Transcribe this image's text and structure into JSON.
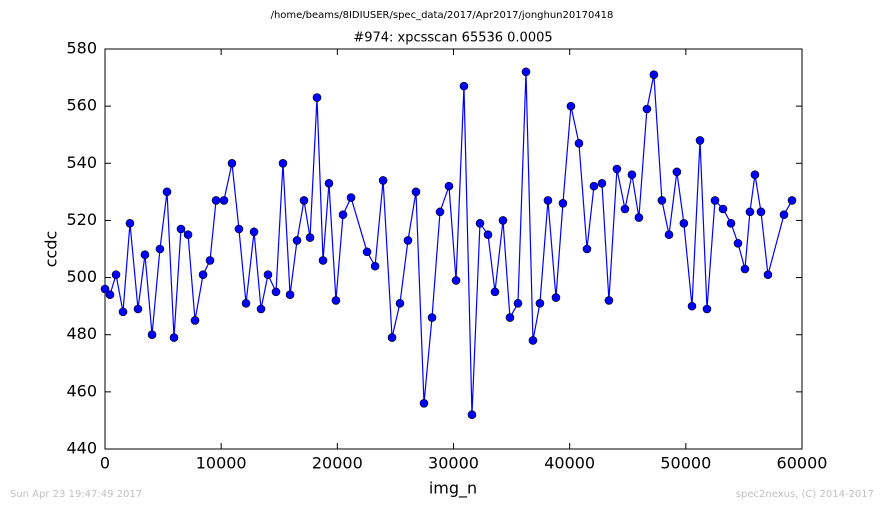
{
  "header": "/home/beams/8IDIUSER/spec_data/2017/Apr2017/jonghun20170418",
  "chart_data": {
    "type": "line",
    "title": "#974: xpcsscan 65536 0.0005",
    "x_label": "img_n",
    "y_label": "ccdc",
    "color": "#0000ff",
    "x": [
      0,
      430,
      950,
      1550,
      2150,
      2840,
      3440,
      4050,
      4730,
      5340,
      5940,
      6540,
      7150,
      7750,
      8440,
      9040,
      9560,
      10240,
      10930,
      11530,
      12140,
      12830,
      13430,
      14030,
      14720,
      15320,
      15930,
      16530,
      17130,
      17650,
      18250,
      18770,
      19280,
      19880,
      20490,
      21180,
      22560,
      23250,
      23940,
      24710,
      25390,
      26080,
      26770,
      27460,
      28150,
      28840,
      29610,
      30220,
      30900,
      31590,
      32280,
      32970,
      33570,
      34260,
      34860,
      35550,
      36240,
      36840,
      37440,
      38130,
      38820,
      39420,
      40110,
      40800,
      41490,
      42090,
      42780,
      43380,
      44070,
      44760,
      45360,
      45960,
      46650,
      47250,
      47940,
      48550,
      49230,
      49830,
      50530,
      51220,
      51820,
      52510,
      53200,
      53890,
      54490,
      55090,
      55520,
      55950,
      56470,
      57070,
      58450,
      59140
    ],
    "values": [
      496,
      494,
      501,
      488,
      519,
      489,
      508,
      480,
      510,
      530,
      479,
      517,
      515,
      485,
      501,
      506,
      527,
      527,
      540,
      517,
      491,
      516,
      489,
      501,
      495,
      540,
      494,
      513,
      527,
      514,
      563,
      506,
      533,
      492,
      522,
      528,
      509,
      504,
      534,
      479,
      491,
      513,
      530,
      456,
      486,
      523,
      532,
      499,
      567,
      452,
      519,
      515,
      495,
      520,
      486,
      491,
      572,
      478,
      491,
      527,
      493,
      526,
      560,
      547,
      510,
      532,
      533,
      492,
      538,
      524,
      536,
      521,
      559,
      571,
      527,
      515,
      537,
      519,
      490,
      548,
      489,
      527,
      524,
      519,
      512,
      503,
      523,
      536,
      523,
      501,
      522,
      527
    ],
    "xlim": [
      0,
      60000
    ],
    "xticks": [
      0,
      10000,
      20000,
      30000,
      40000,
      50000,
      60000
    ],
    "ylim": [
      440,
      580
    ],
    "yticks": [
      440,
      460,
      480,
      500,
      520,
      540,
      560,
      580
    ]
  },
  "footer": {
    "left": "Sun Apr 23 19:47:49 2017",
    "right": "spec2nexus, (C) 2014-2017"
  }
}
